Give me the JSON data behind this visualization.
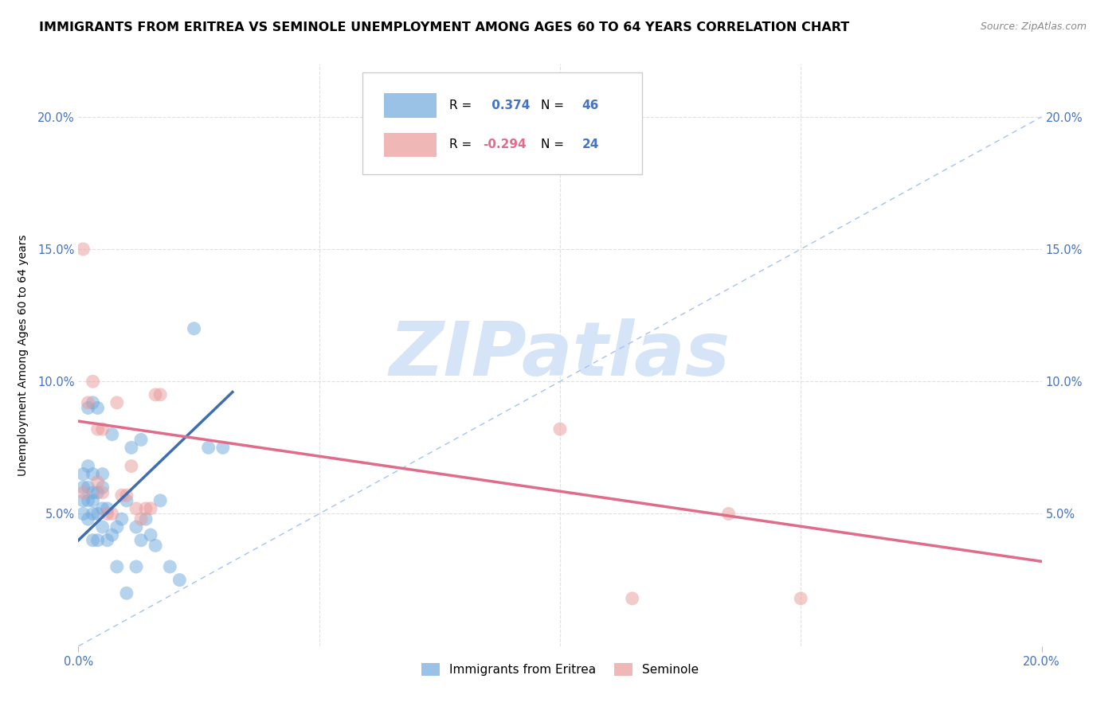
{
  "title": "IMMIGRANTS FROM ERITREA VS SEMINOLE UNEMPLOYMENT AMONG AGES 60 TO 64 YEARS CORRELATION CHART",
  "source": "Source: ZipAtlas.com",
  "ylabel": "Unemployment Among Ages 60 to 64 years",
  "xlim": [
    0.0,
    0.2
  ],
  "ylim": [
    0.0,
    0.22
  ],
  "xticks": [
    0.0,
    0.2
  ],
  "yticks": [
    0.05,
    0.1,
    0.15,
    0.2
  ],
  "xticklabels_left": "0.0%",
  "xticklabels_right": "20.0%",
  "yticklabels": [
    "5.0%",
    "10.0%",
    "15.0%",
    "20.0%"
  ],
  "blue_color": "#6fa8dc",
  "pink_color": "#ea9999",
  "blue_line_color": "#3d6eb4",
  "pink_line_color": "#e06c8a",
  "diag_line_color": "#a4c2f4",
  "watermark_text": "ZIPatlas",
  "watermark_color": "#d6e4f7",
  "R_blue": 0.374,
  "N_blue": 46,
  "R_pink": -0.294,
  "N_pink": 24,
  "blue_scatter_x": [
    0.001,
    0.001,
    0.001,
    0.001,
    0.002,
    0.002,
    0.002,
    0.002,
    0.002,
    0.003,
    0.003,
    0.003,
    0.003,
    0.003,
    0.003,
    0.004,
    0.004,
    0.004,
    0.004,
    0.005,
    0.005,
    0.005,
    0.005,
    0.006,
    0.006,
    0.007,
    0.007,
    0.008,
    0.008,
    0.009,
    0.01,
    0.01,
    0.011,
    0.012,
    0.012,
    0.013,
    0.013,
    0.014,
    0.015,
    0.016,
    0.017,
    0.019,
    0.021,
    0.024,
    0.027,
    0.03
  ],
  "blue_scatter_y": [
    0.05,
    0.055,
    0.06,
    0.065,
    0.048,
    0.055,
    0.06,
    0.068,
    0.09,
    0.04,
    0.05,
    0.055,
    0.058,
    0.065,
    0.092,
    0.04,
    0.05,
    0.058,
    0.09,
    0.045,
    0.052,
    0.06,
    0.065,
    0.04,
    0.052,
    0.042,
    0.08,
    0.03,
    0.045,
    0.048,
    0.02,
    0.055,
    0.075,
    0.03,
    0.045,
    0.04,
    0.078,
    0.048,
    0.042,
    0.038,
    0.055,
    0.03,
    0.025,
    0.12,
    0.075,
    0.075
  ],
  "pink_scatter_x": [
    0.001,
    0.001,
    0.002,
    0.003,
    0.004,
    0.004,
    0.005,
    0.005,
    0.006,
    0.007,
    0.008,
    0.009,
    0.01,
    0.011,
    0.012,
    0.013,
    0.014,
    0.015,
    0.016,
    0.017,
    0.1,
    0.115,
    0.135,
    0.15
  ],
  "pink_scatter_y": [
    0.058,
    0.15,
    0.092,
    0.1,
    0.062,
    0.082,
    0.058,
    0.082,
    0.05,
    0.05,
    0.092,
    0.057,
    0.057,
    0.068,
    0.052,
    0.048,
    0.052,
    0.052,
    0.095,
    0.095,
    0.082,
    0.018,
    0.05,
    0.018
  ],
  "blue_trend_x": [
    0.0,
    0.032
  ],
  "blue_trend_y": [
    0.04,
    0.096
  ],
  "pink_trend_x": [
    0.0,
    0.2
  ],
  "pink_trend_y": [
    0.085,
    0.032
  ],
  "diag_line_x": [
    0.0,
    0.2
  ],
  "diag_line_y": [
    0.0,
    0.2
  ],
  "legend_labels": [
    "Immigrants from Eritrea",
    "Seminole"
  ],
  "background_color": "#ffffff",
  "grid_color": "#e0e0e0",
  "title_fontsize": 11.5,
  "label_fontsize": 10,
  "tick_fontsize": 10.5
}
